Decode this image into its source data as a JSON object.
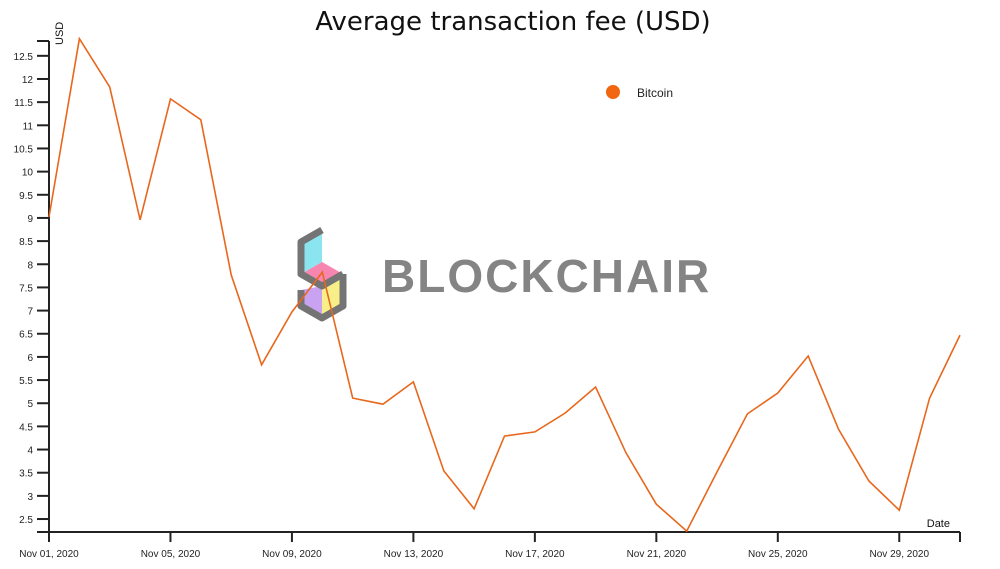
{
  "chart_data": {
    "type": "line",
    "title": "Average transaction fee (USD)",
    "xlabel": "Date",
    "ylabel": "USD",
    "ylim": [
      2.22,
      12.82
    ],
    "yticks": [
      "2.5",
      "3",
      "3.5",
      "4",
      "4.5",
      "5",
      "5.5",
      "6",
      "6.5",
      "7",
      "7.5",
      "8",
      "8.5",
      "9",
      "9.5",
      "10",
      "10.5",
      "11",
      "11.5",
      "12",
      "12.5"
    ],
    "xticks": [
      {
        "day": 0,
        "label": "Nov 01, 2020"
      },
      {
        "day": 4,
        "label": "Nov 05, 2020"
      },
      {
        "day": 8,
        "label": "Nov 09, 2020"
      },
      {
        "day": 12,
        "label": "Nov 13, 2020"
      },
      {
        "day": 16,
        "label": "Nov 17, 2020"
      },
      {
        "day": 20,
        "label": "Nov 21, 2020"
      },
      {
        "day": 24,
        "label": "Nov 25, 2020"
      },
      {
        "day": 28,
        "label": "Nov 29, 2020"
      },
      {
        "day": 30,
        "label": ""
      }
    ],
    "legend": {
      "position": "top-right",
      "entries": [
        "Bitcoin"
      ]
    },
    "series": [
      {
        "name": "Bitcoin",
        "color": "#e8671c",
        "values": [
          9.02,
          12.87,
          11.83,
          8.96,
          11.57,
          11.12,
          7.77,
          5.83,
          6.97,
          7.83,
          5.11,
          4.98,
          5.46,
          3.54,
          2.72,
          4.29,
          4.38,
          4.79,
          5.35,
          3.93,
          2.82,
          2.24,
          3.52,
          4.77,
          5.22,
          6.02,
          4.44,
          3.32,
          2.69,
          5.11,
          6.47
        ]
      }
    ]
  },
  "watermark": {
    "text": "BLOCKCHAIR"
  }
}
